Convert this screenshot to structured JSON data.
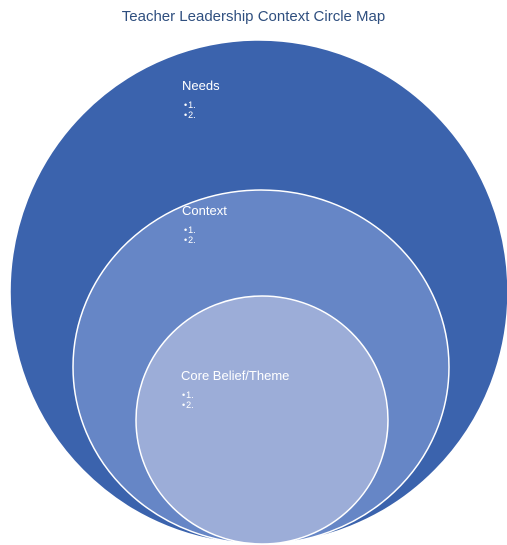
{
  "title": "Teacher Leadership Context Circle Map",
  "colors": {
    "outer": "#3b63ad",
    "middle": "#6686c6",
    "inner": "#9cadd8",
    "stroke": "#ffffff",
    "title": "#2f4f7f"
  },
  "circles": {
    "outer": {
      "label": "Needs",
      "items": [
        "1.",
        "2."
      ]
    },
    "middle": {
      "label": "Context",
      "items": [
        "1.",
        "2."
      ]
    },
    "inner": {
      "label": "Core Belief/Theme",
      "items": [
        "1.",
        "2."
      ]
    }
  }
}
